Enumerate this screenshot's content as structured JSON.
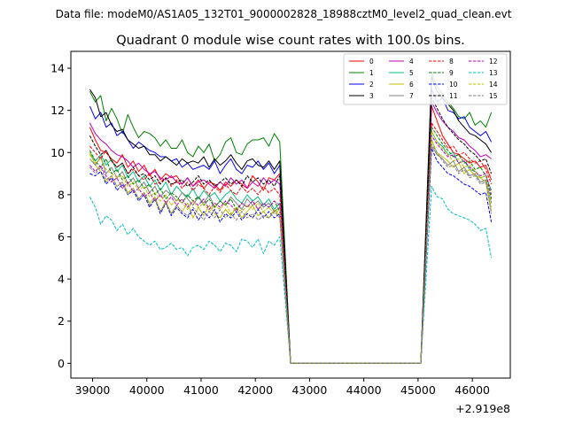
{
  "chart_data": {
    "type": "line",
    "suptitle": "Data file: modeM0/AS1A05_132T01_9000002828_18988cztM0_level2_quad_clean.evt",
    "title": "Quadrant 0 module wise count rates with 100.0s bins.",
    "xlabel": "",
    "ylabel": "",
    "x_offset_label": "+2.919e8",
    "xlim": [
      38600,
      46700
    ],
    "ylim": [
      -0.7,
      14.8
    ],
    "xticks": [
      39000,
      40000,
      41000,
      42000,
      43000,
      44000,
      45000,
      46000
    ],
    "yticks": [
      0,
      2,
      4,
      6,
      8,
      10,
      12,
      14
    ],
    "legend_position": "top-right",
    "legend_columns": 4,
    "x_segments": {
      "seg1_start": 38950,
      "seg1_end": 42450,
      "seg1_step": 100,
      "gap_ramp_end": 42650,
      "gap_end": 45050,
      "seg2_start": 45250,
      "seg2_end": 46350,
      "seg2_step": 100
    },
    "series": [
      {
        "name": "0",
        "color": "#ff0000",
        "dash": false,
        "seg1": [
          11.2,
          10.6,
          10.1,
          10.0,
          9.7,
          9.5,
          9.9,
          9.3,
          9.6,
          9.1,
          9.4,
          8.9,
          9.2,
          8.7,
          9.0,
          8.8,
          8.9,
          8.5,
          8.8,
          8.4,
          8.7,
          8.3,
          8.6,
          8.5,
          8.2,
          8.6,
          8.4,
          8.7,
          8.5,
          8.3,
          8.9,
          8.6,
          8.2,
          8.8,
          8.7,
          9.0
        ],
        "seg2": [
          12.2,
          11.5,
          10.8,
          10.4,
          10.0,
          9.9,
          9.7,
          9.5,
          9.6,
          9.3,
          9.4,
          8.7
        ]
      },
      {
        "name": "1",
        "color": "#008000",
        "dash": false,
        "seg1": [
          12.9,
          12.4,
          12.7,
          11.5,
          12.1,
          11.6,
          10.9,
          11.8,
          11.2,
          10.7,
          11.0,
          10.9,
          10.7,
          10.3,
          10.6,
          10.2,
          10.2,
          10.6,
          10.0,
          9.8,
          10.3,
          10.0,
          10.4,
          9.6,
          9.9,
          10.5,
          10.7,
          10.0,
          9.9,
          10.4,
          10.6,
          10.6,
          10.7,
          10.3,
          10.9,
          10.5
        ],
        "seg2": [
          13.8,
          13.1,
          12.8,
          12.4,
          12.1,
          11.7,
          11.6,
          11.9,
          11.3,
          11.5,
          11.2,
          11.9
        ]
      },
      {
        "name": "2",
        "color": "#0000ff",
        "dash": false,
        "seg1": [
          12.2,
          11.6,
          11.9,
          11.2,
          11.4,
          10.8,
          11.0,
          10.6,
          10.2,
          10.5,
          10.3,
          10.1,
          10.0,
          9.8,
          9.8,
          9.6,
          9.7,
          9.3,
          9.5,
          9.2,
          9.3,
          9.4,
          9.2,
          9.6,
          9.0,
          9.4,
          9.7,
          9.2,
          9.0,
          9.4,
          9.3,
          9.6,
          9.2,
          9.5,
          9.0,
          9.4
        ],
        "seg2": [
          13.0,
          12.4,
          12.6,
          12.0,
          11.9,
          11.6,
          11.7,
          11.2,
          11.0,
          10.8,
          11.0,
          10.5
        ]
      },
      {
        "name": "3",
        "color": "#000000",
        "dash": false,
        "seg1": [
          13.0,
          12.6,
          11.7,
          11.9,
          11.3,
          11.0,
          11.1,
          10.6,
          10.4,
          10.2,
          10.3,
          9.9,
          9.9,
          9.6,
          9.8,
          9.6,
          9.4,
          9.7,
          9.5,
          9.6,
          9.5,
          9.8,
          9.3,
          9.7,
          9.4,
          9.6,
          9.9,
          9.5,
          9.2,
          9.6,
          9.7,
          9.4,
          9.3,
          9.6,
          9.2,
          9.6
        ],
        "seg2": [
          13.6,
          12.9,
          12.6,
          12.3,
          12.0,
          11.5,
          11.2,
          10.9,
          10.8,
          10.6,
          10.4,
          10.0
        ]
      },
      {
        "name": "4",
        "color": "#bf00bf",
        "dash": false,
        "seg1": [
          11.4,
          10.9,
          10.6,
          10.4,
          10.1,
          9.9,
          9.8,
          9.6,
          9.3,
          9.5,
          9.2,
          9.0,
          9.1,
          8.8,
          8.7,
          8.9,
          8.6,
          8.5,
          8.8,
          8.4,
          8.6,
          8.7,
          8.5,
          8.3,
          8.6,
          8.4,
          8.8,
          8.5,
          8.7,
          8.3,
          8.6,
          8.4,
          8.8,
          8.5,
          8.7,
          8.5
        ],
        "seg2": [
          12.4,
          11.9,
          11.5,
          11.2,
          11.0,
          10.7,
          10.6,
          10.3,
          10.1,
          9.8,
          9.9,
          9.7
        ]
      },
      {
        "name": "5",
        "color": "#00bf7f",
        "dash": false,
        "seg1": [
          10.0,
          9.6,
          9.9,
          9.4,
          9.7,
          9.1,
          9.4,
          8.8,
          9.1,
          8.6,
          8.9,
          8.4,
          8.7,
          8.2,
          8.6,
          8.0,
          8.4,
          8.1,
          7.9,
          8.3,
          7.8,
          8.2,
          7.9,
          8.1,
          7.7,
          8.0,
          8.2,
          7.8,
          7.6,
          8.0,
          7.7,
          7.9,
          7.5,
          7.8,
          7.3,
          7.6
        ],
        "seg2": [
          11.0,
          10.5,
          10.3,
          9.9,
          10.0,
          9.5,
          9.6,
          9.2,
          9.1,
          8.8,
          8.9,
          8.2
        ]
      },
      {
        "name": "6",
        "color": "#bfbf00",
        "dash": false,
        "seg1": [
          10.0,
          9.4,
          9.1,
          8.6,
          8.9,
          8.4,
          8.6,
          8.1,
          8.3,
          7.8,
          8.1,
          7.6,
          7.9,
          7.2,
          7.7,
          7.1,
          7.5,
          7.2,
          7.6,
          6.9,
          7.4,
          7.0,
          7.5,
          7.1,
          6.9,
          7.3,
          7.0,
          7.4,
          6.9,
          7.2,
          7.5,
          7.0,
          7.2,
          6.9,
          7.3,
          7.0
        ],
        "seg2": [
          10.6,
          10.0,
          9.8,
          9.6,
          9.3,
          9.5,
          9.0,
          9.2,
          8.9,
          8.8,
          8.6,
          7.2
        ]
      },
      {
        "name": "7",
        "color": "#808080",
        "dash": false,
        "seg1": [
          9.7,
          9.4,
          9.8,
          9.0,
          9.3,
          8.8,
          9.1,
          8.5,
          8.8,
          8.3,
          8.6,
          8.1,
          8.4,
          7.9,
          8.2,
          8.0,
          7.7,
          8.1,
          7.8,
          7.5,
          7.9,
          7.6,
          8.0,
          7.4,
          7.7,
          7.5,
          7.9,
          7.6,
          7.3,
          7.8,
          7.5,
          7.7,
          7.4,
          7.6,
          7.2,
          7.4
        ],
        "seg2": [
          10.3,
          9.9,
          9.7,
          9.4,
          9.6,
          9.1,
          9.3,
          8.9,
          9.0,
          8.6,
          8.7,
          7.6
        ]
      },
      {
        "name": "8",
        "color": "#ff0000",
        "dash": true,
        "seg1": [
          10.3,
          10.0,
          9.7,
          10.1,
          9.6,
          9.3,
          9.5,
          9.0,
          9.2,
          8.9,
          8.7,
          9.0,
          8.5,
          8.6,
          8.8,
          8.4,
          8.7,
          8.3,
          8.6,
          8.2,
          8.5,
          8.3,
          8.0,
          8.4,
          8.1,
          8.5,
          8.2,
          8.0,
          8.4,
          8.1,
          8.3,
          8.0,
          8.4,
          8.1,
          8.3,
          8.0
        ],
        "seg2": [
          11.4,
          11.0,
          10.6,
          10.2,
          10.3,
          9.9,
          10.0,
          9.7,
          9.5,
          9.6,
          9.2,
          8.5
        ]
      },
      {
        "name": "9",
        "color": "#008000",
        "dash": true,
        "seg1": [
          10.1,
          9.6,
          9.3,
          9.7,
          9.0,
          9.2,
          8.7,
          8.9,
          8.5,
          8.7,
          8.3,
          8.5,
          8.0,
          8.3,
          7.8,
          8.1,
          7.9,
          7.6,
          8.0,
          7.7,
          7.9,
          7.5,
          7.8,
          7.4,
          7.7,
          7.5,
          7.8,
          7.3,
          7.6,
          7.4,
          7.7,
          7.3,
          7.6,
          7.4,
          7.7,
          7.2
        ],
        "seg2": [
          11.2,
          10.8,
          10.4,
          10.1,
          9.8,
          9.9,
          9.5,
          9.6,
          9.2,
          9.3,
          8.9,
          7.8
        ]
      },
      {
        "name": "10",
        "color": "#0000ff",
        "dash": true,
        "seg1": [
          9.0,
          8.9,
          9.1,
          8.5,
          8.8,
          8.2,
          8.5,
          8.0,
          8.2,
          7.7,
          8.0,
          7.4,
          7.8,
          7.1,
          7.6,
          7.0,
          7.4,
          7.1,
          6.9,
          7.3,
          6.8,
          7.2,
          6.9,
          7.3,
          6.7,
          7.1,
          6.9,
          7.2,
          6.8,
          7.1,
          6.9,
          7.3,
          6.9,
          7.2,
          6.9,
          7.1
        ],
        "seg2": [
          10.2,
          9.6,
          9.3,
          9.0,
          8.9,
          8.7,
          8.5,
          8.4,
          8.2,
          8.0,
          8.1,
          6.7
        ]
      },
      {
        "name": "11",
        "color": "#000000",
        "dash": true,
        "seg1": [
          10.8,
          10.3,
          9.9,
          10.1,
          9.6,
          9.3,
          9.5,
          9.0,
          9.3,
          8.9,
          9.0,
          8.7,
          8.9,
          8.5,
          8.8,
          8.5,
          8.6,
          8.7,
          8.4,
          8.6,
          8.9,
          8.5,
          8.7,
          8.4,
          8.6,
          8.8,
          8.5,
          8.7,
          8.4,
          8.9,
          8.6,
          8.8,
          8.5,
          8.7,
          8.4,
          8.9
        ],
        "seg2": [
          12.6,
          12.1,
          11.6,
          11.2,
          10.9,
          10.6,
          10.4,
          10.1,
          9.9,
          9.6,
          9.7,
          9.0
        ]
      },
      {
        "name": "12",
        "color": "#bf00bf",
        "dash": true,
        "seg1": [
          9.4,
          9.1,
          9.4,
          8.9,
          8.6,
          8.8,
          8.3,
          8.6,
          8.1,
          8.3,
          7.9,
          8.1,
          7.7,
          8.0,
          7.6,
          7.9,
          7.5,
          7.8,
          7.4,
          7.7,
          7.5,
          7.8,
          7.3,
          7.6,
          7.4,
          7.7,
          7.5,
          7.2,
          7.6,
          7.4,
          7.7,
          7.3,
          7.6,
          7.4,
          7.7,
          7.5
        ],
        "seg2": [
          10.8,
          10.4,
          10.1,
          9.8,
          9.9,
          9.5,
          9.6,
          9.3,
          9.1,
          8.9,
          9.0,
          8.0
        ]
      },
      {
        "name": "13",
        "color": "#00bfbf",
        "dash": true,
        "seg1": [
          7.9,
          7.4,
          6.6,
          7.0,
          6.8,
          6.3,
          6.6,
          6.1,
          6.4,
          6.0,
          5.8,
          5.6,
          5.8,
          5.4,
          5.5,
          5.7,
          5.4,
          5.5,
          5.1,
          5.5,
          5.6,
          5.4,
          5.8,
          5.6,
          5.3,
          5.7,
          5.6,
          5.3,
          5.9,
          5.8,
          5.5,
          5.9,
          5.2,
          5.8,
          5.6,
          6.0
        ],
        "seg2": [
          8.4,
          7.9,
          7.8,
          7.3,
          7.1,
          7.0,
          6.9,
          6.8,
          6.6,
          6.3,
          6.4,
          5.0
        ]
      },
      {
        "name": "14",
        "color": "#bfbf00",
        "dash": true,
        "seg1": [
          9.9,
          9.5,
          9.7,
          9.2,
          9.0,
          8.8,
          8.9,
          8.4,
          8.6,
          8.2,
          8.4,
          7.9,
          8.1,
          7.7,
          8.0,
          7.5,
          7.8,
          7.6,
          7.3,
          7.7,
          7.4,
          7.6,
          7.2,
          7.5,
          7.3,
          7.6,
          7.1,
          7.4,
          7.2,
          7.5,
          7.3,
          7.6,
          7.2,
          7.4,
          7.1,
          7.3
        ],
        "seg2": [
          11.0,
          10.5,
          10.2,
          9.9,
          9.6,
          9.7,
          9.3,
          9.4,
          9.1,
          8.8,
          8.9,
          7.4
        ]
      },
      {
        "name": "15",
        "color": "#808080",
        "dash": true,
        "seg1": [
          9.3,
          9.0,
          9.3,
          8.7,
          8.9,
          8.4,
          8.6,
          8.0,
          8.3,
          7.8,
          8.1,
          7.5,
          7.8,
          7.2,
          7.6,
          7.1,
          7.5,
          7.2,
          7.0,
          7.4,
          7.1,
          6.8,
          7.2,
          6.9,
          7.3,
          6.9,
          7.1,
          6.8,
          7.2,
          6.9,
          7.1,
          6.8,
          7.0,
          6.9,
          7.2,
          6.9
        ],
        "seg2": [
          10.4,
          10.0,
          9.6,
          9.3,
          9.4,
          9.0,
          9.2,
          8.8,
          8.9,
          8.5,
          8.6,
          7.1
        ]
      }
    ]
  }
}
